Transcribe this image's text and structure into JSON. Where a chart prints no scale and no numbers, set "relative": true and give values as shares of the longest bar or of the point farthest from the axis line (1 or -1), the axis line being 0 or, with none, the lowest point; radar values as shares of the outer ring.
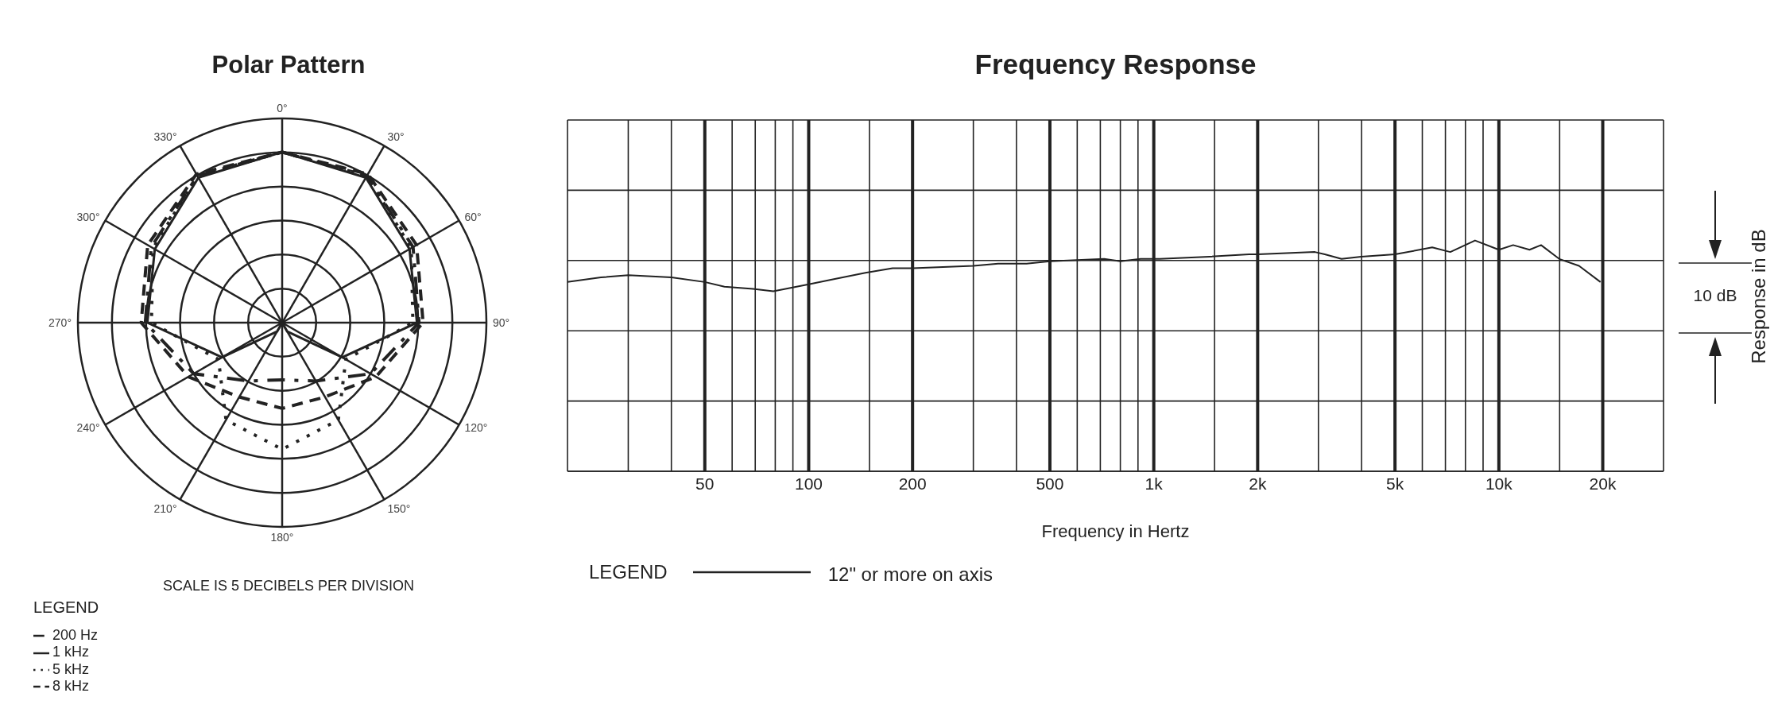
{
  "chart_data": [
    {
      "type": "radar",
      "title": "Polar Pattern",
      "categories": [
        "0°",
        "30°",
        "60°",
        "90°",
        "120°",
        "150°",
        "180°",
        "210°",
        "240°",
        "270°",
        "300°",
        "330°"
      ],
      "relative": true,
      "grid": true,
      "marker": "none",
      "legend": "bottom left",
      "legend_title": "LEGEND",
      "annotations": [
        "SCALE IS 5 DECIBELS PER DIVISION"
      ],
      "series": [
        {
          "name": "200 Hz",
          "color": "#222222",
          "line_style": "dashdot",
          "values": [
            0.835,
            0.83,
            0.74,
            0.67,
            0.5,
            0.33,
            0.28,
            0.33,
            0.5,
            0.67,
            0.74,
            0.83
          ]
        },
        {
          "name": "1 kHz",
          "color": "#222222",
          "line_style": "solid",
          "values": [
            0.835,
            0.82,
            0.72,
            0.66,
            0.34,
            0.05,
            0,
            0.05,
            0.34,
            0.66,
            0.72,
            0.82
          ]
        },
        {
          "name": "5 kHz",
          "color": "#222222",
          "line_style": "dotted",
          "values": [
            0.835,
            0.83,
            0.73,
            0.64,
            0.36,
            0.55,
            0.62,
            0.55,
            0.36,
            0.64,
            0.73,
            0.83
          ]
        },
        {
          "name": "8 kHz",
          "color": "#222222",
          "line_style": "dashed",
          "values": [
            0.835,
            0.84,
            0.76,
            0.69,
            0.53,
            0.42,
            0.42,
            0.42,
            0.53,
            0.69,
            0.76,
            0.84
          ]
        }
      ]
    },
    {
      "type": "line",
      "title": "Frequency Response",
      "xlabel": "Frequency in Hertz",
      "ylabel": "Response in dB",
      "relative": true,
      "log": "x",
      "grid": true,
      "marker": "none",
      "legend": "bottom left",
      "legend_title": "LEGEND",
      "tick_labels": "x",
      "annotations": [
        "10 dB"
      ],
      "xlim": [
        20,
        30000
      ],
      "xticks": [
        {
          "value": 30,
          "label": null
        },
        {
          "value": 40,
          "label": null
        },
        50,
        {
          "value": 60,
          "label": null
        },
        {
          "value": 70,
          "label": null
        },
        {
          "value": 80,
          "label": null
        },
        {
          "value": 90,
          "label": null
        },
        100,
        {
          "value": 150,
          "label": null
        },
        200,
        {
          "value": 300,
          "label": null
        },
        {
          "value": 400,
          "label": null
        },
        500,
        {
          "value": 600,
          "label": null
        },
        {
          "value": 700,
          "label": null
        },
        {
          "value": 800,
          "label": null
        },
        {
          "value": 900,
          "label": null
        },
        {
          "value": 1000,
          "label": "1k"
        },
        {
          "value": 1500,
          "label": null
        },
        {
          "value": 2000,
          "label": "2k"
        },
        {
          "value": 3000,
          "label": null
        },
        {
          "value": 4000,
          "label": null
        },
        {
          "value": 5000,
          "label": "5k"
        },
        {
          "value": 6000,
          "label": null
        },
        {
          "value": 7000,
          "label": null
        },
        {
          "value": 8000,
          "label": null
        },
        {
          "value": 9000,
          "label": null
        },
        {
          "value": 10000,
          "label": "10k"
        },
        {
          "value": 15000,
          "label": null
        },
        {
          "value": 20000,
          "label": "20k"
        }
      ],
      "series": [
        {
          "name": "12\" or more on axis",
          "color": "#222222",
          "line_style": "solid",
          "x": [
            20,
            25,
            30,
            40,
            50,
            57,
            69,
            79,
            100,
            116,
            146,
            175,
            200,
            300,
            354,
            428,
            500,
            718,
            800,
            916,
            1040,
            1450,
            1890,
            2000,
            2930,
            3130,
            3500,
            3990,
            5000,
            6410,
            7230,
            8530,
            10000,
            11000,
            12270,
            13250,
            14960,
            17070,
            19700
          ],
          "values": [
            0.82,
            0.84,
            0.85,
            0.84,
            0.82,
            0.8,
            0.79,
            0.78,
            0.81,
            0.83,
            0.86,
            0.88,
            0.88,
            0.89,
            0.9,
            0.9,
            0.91,
            0.92,
            0.91,
            0.92,
            0.92,
            0.93,
            0.94,
            0.94,
            0.95,
            0.94,
            0.92,
            0.93,
            0.94,
            0.97,
            0.95,
            1,
            0.96,
            0.98,
            0.96,
            0.98,
            0.92,
            0.89,
            0.82
          ]
        }
      ]
    }
  ]
}
